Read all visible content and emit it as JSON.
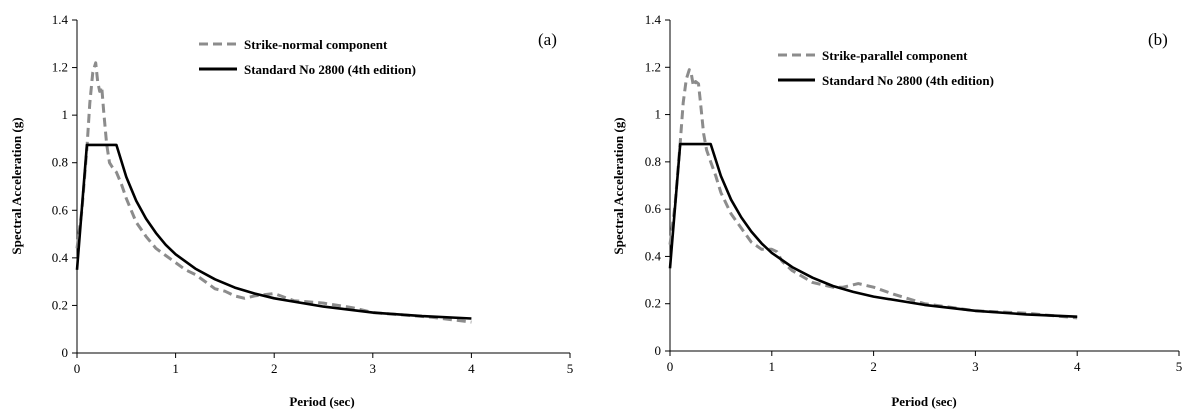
{
  "chart_data": [
    {
      "type": "line",
      "panel_label": "(a)",
      "xlabel": "Period (sec)",
      "ylabel": "Spectral Acceleration (g)",
      "xlim": [
        0,
        5
      ],
      "ylim": [
        0,
        1.4
      ],
      "xticks": [
        "0",
        "1",
        "2",
        "3",
        "4",
        "5"
      ],
      "yticks": [
        "0",
        "0.2",
        "0.4",
        "0.6",
        "0.8",
        "1",
        "1.2",
        "1.4"
      ],
      "grid": false,
      "legend_position": "top-center",
      "series": [
        {
          "name": "Strike-normal component",
          "style": "dashed",
          "color": "#8c8c8c",
          "x": [
            0,
            0.05,
            0.1,
            0.13,
            0.16,
            0.19,
            0.21,
            0.23,
            0.25,
            0.27,
            0.3,
            0.33,
            0.36,
            0.4,
            0.45,
            0.5,
            0.55,
            0.6,
            0.7,
            0.8,
            0.9,
            1.0,
            1.1,
            1.2,
            1.3,
            1.4,
            1.5,
            1.6,
            1.7,
            1.8,
            2.0,
            2.2,
            2.5,
            2.8,
            3.0,
            3.3,
            3.6,
            4.0
          ],
          "y": [
            0.44,
            0.6,
            0.86,
            1.05,
            1.18,
            1.22,
            1.14,
            1.1,
            1.12,
            1.02,
            0.88,
            0.8,
            0.78,
            0.76,
            0.71,
            0.65,
            0.6,
            0.55,
            0.49,
            0.44,
            0.41,
            0.38,
            0.35,
            0.33,
            0.3,
            0.27,
            0.26,
            0.24,
            0.23,
            0.24,
            0.25,
            0.22,
            0.21,
            0.19,
            0.17,
            0.16,
            0.15,
            0.13
          ]
        },
        {
          "name": "Standard No 2800 (4th edition)",
          "style": "solid",
          "color": "#000000",
          "x": [
            0,
            0.1,
            0.4,
            0.5,
            0.6,
            0.7,
            0.8,
            0.9,
            1.0,
            1.2,
            1.4,
            1.6,
            1.8,
            2.0,
            2.5,
            3.0,
            3.5,
            4.0
          ],
          "y": [
            0.35,
            0.875,
            0.875,
            0.74,
            0.64,
            0.565,
            0.505,
            0.455,
            0.415,
            0.355,
            0.31,
            0.275,
            0.25,
            0.23,
            0.195,
            0.17,
            0.155,
            0.145
          ]
        }
      ]
    },
    {
      "type": "line",
      "panel_label": "(b)",
      "xlabel": "Period (sec)",
      "ylabel": "Spectral Acceleration (g)",
      "xlim": [
        0,
        5
      ],
      "ylim": [
        0,
        1.4
      ],
      "xticks": [
        "0",
        "1",
        "2",
        "3",
        "4",
        "5"
      ],
      "yticks": [
        "0",
        "0.2",
        "0.4",
        "0.6",
        "0.8",
        "1",
        "1.2",
        "1.4"
      ],
      "grid": false,
      "legend_position": "top-center",
      "series": [
        {
          "name": "Strike-parallel component",
          "style": "dashed",
          "color": "#8c8c8c",
          "x": [
            0,
            0.05,
            0.1,
            0.13,
            0.16,
            0.19,
            0.21,
            0.23,
            0.25,
            0.28,
            0.3,
            0.33,
            0.36,
            0.4,
            0.45,
            0.5,
            0.6,
            0.7,
            0.8,
            0.9,
            1.0,
            1.05,
            1.1,
            1.2,
            1.4,
            1.6,
            1.7,
            1.8,
            1.85,
            1.9,
            2.0,
            2.2,
            2.5,
            3.0,
            3.5,
            4.0
          ],
          "y": [
            0.45,
            0.62,
            0.88,
            1.05,
            1.15,
            1.19,
            1.17,
            1.12,
            1.14,
            1.13,
            1.05,
            0.92,
            0.85,
            0.8,
            0.74,
            0.67,
            0.58,
            0.52,
            0.46,
            0.43,
            0.43,
            0.42,
            0.38,
            0.34,
            0.29,
            0.27,
            0.27,
            0.28,
            0.285,
            0.28,
            0.27,
            0.24,
            0.2,
            0.17,
            0.16,
            0.14
          ]
        },
        {
          "name": "Standard No 2800 (4th edition)",
          "style": "solid",
          "color": "#000000",
          "x": [
            0,
            0.1,
            0.4,
            0.5,
            0.6,
            0.7,
            0.8,
            0.9,
            1.0,
            1.2,
            1.4,
            1.6,
            1.8,
            2.0,
            2.5,
            3.0,
            3.5,
            4.0
          ],
          "y": [
            0.35,
            0.875,
            0.875,
            0.74,
            0.64,
            0.565,
            0.505,
            0.455,
            0.415,
            0.355,
            0.31,
            0.275,
            0.25,
            0.23,
            0.195,
            0.17,
            0.155,
            0.145
          ]
        }
      ]
    }
  ]
}
